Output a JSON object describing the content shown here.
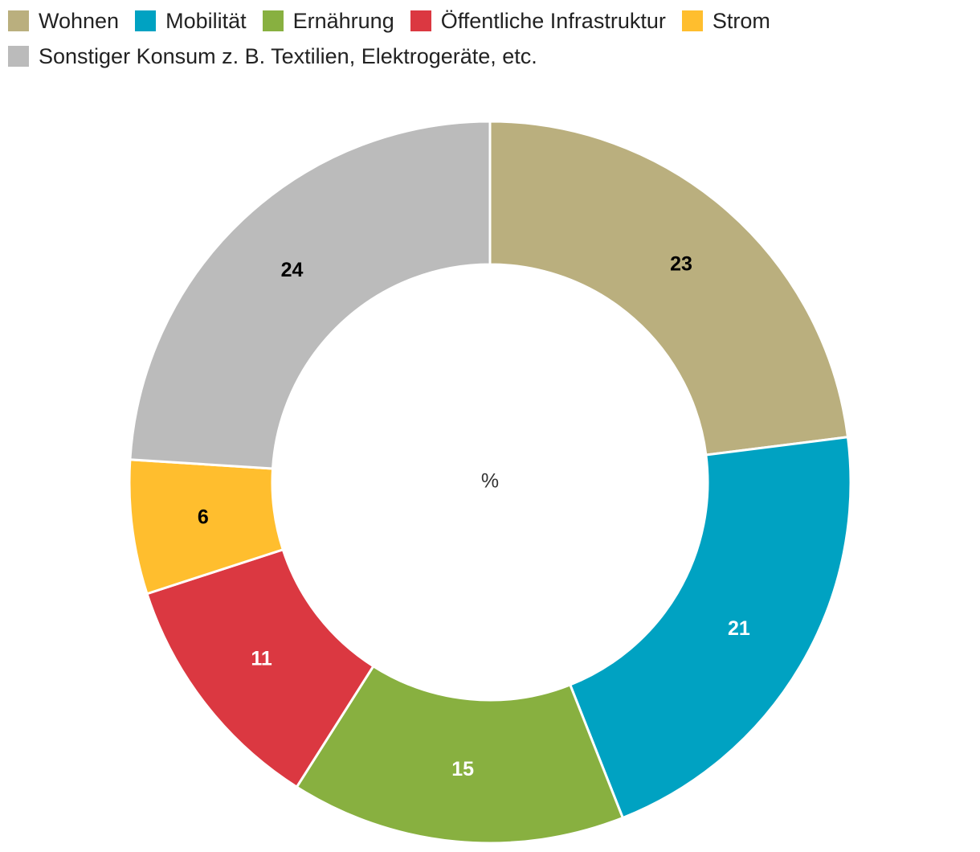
{
  "chart_data": {
    "type": "pie",
    "variant": "donut",
    "center_label": "%",
    "legend_position": "top-left",
    "categories": [
      "Wohnen",
      "Mobilität",
      "Ernährung",
      "Öffentliche Infrastruktur",
      "Strom",
      "Sonstiger Konsum z. B. Textilien, Elektrogeräte, etc."
    ],
    "values": [
      23,
      21,
      15,
      11,
      6,
      24
    ],
    "data_labels": [
      "23",
      "21",
      "15",
      "11",
      "6",
      "24"
    ],
    "colors": [
      "#BAAF7E",
      "#00A2C2",
      "#88B040",
      "#DB3841",
      "#FFBE2E",
      "#BBBBBB"
    ],
    "label_colors": [
      "#000000",
      "#FFFFFF",
      "#FFFFFF",
      "#FFFFFF",
      "#000000",
      "#000000"
    ],
    "start": "12 o'clock",
    "direction": "clockwise"
  }
}
